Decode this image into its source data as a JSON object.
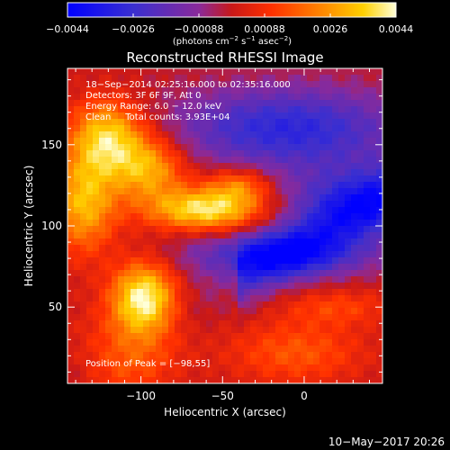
{
  "chart_data": {
    "type": "heatmap",
    "title": "Reconstructed RHESSI Image",
    "xlabel": "Heliocentric X (arcsec)",
    "ylabel": "Heliocentric Y (arcsec)",
    "xlim": [
      -145,
      48
    ],
    "ylim": [
      3,
      197
    ],
    "x_ticks": [
      {
        "value": -100,
        "label": "−100"
      },
      {
        "value": -50,
        "label": "−50"
      },
      {
        "value": 0,
        "label": "0"
      }
    ],
    "y_ticks": [
      {
        "value": 50,
        "label": "50"
      },
      {
        "value": 100,
        "label": "100"
      },
      {
        "value": 150,
        "label": "150"
      }
    ],
    "colorbar": {
      "range": [
        -0.0044,
        0.0044
      ],
      "colormap": "rhessi-blue-purple-red-yellow-white",
      "tick_labels": [
        "−0.0044",
        "−0.0026",
        "−0.00088",
        "0.00088",
        "0.0026",
        "0.0044"
      ],
      "unit_base": "(photons cm",
      "unit_sup1": "−2",
      "unit_mid1": " s",
      "unit_sup2": "−1",
      "unit_mid2": " asec",
      "unit_sup3": "−2",
      "unit_end": ")"
    },
    "annotations": [
      "18−Sep−2014 02:25:16.000 to 02:35:16.000",
      "Detectors: 3F 6F 9F, Att 0",
      "Energy Range: 6.0 − 12.0 keV",
      "Clean     Total counts: 3.93E+04"
    ],
    "peak_label": "Position of Peak = [−98,55]",
    "peak": [
      -98,
      55
    ],
    "sources": [
      {
        "x": -98,
        "y": 55,
        "intensity": 0.0044,
        "sx": 14,
        "sy": 16
      },
      {
        "x": -60,
        "y": 110,
        "intensity": 0.004,
        "sx": 24,
        "sy": 9
      },
      {
        "x": -120,
        "y": 155,
        "intensity": 0.0036,
        "sx": 16,
        "sy": 16
      },
      {
        "x": -135,
        "y": 115,
        "intensity": 0.0032,
        "sx": 14,
        "sy": 22
      },
      {
        "x": -95,
        "y": 135,
        "intensity": 0.003,
        "sx": 16,
        "sy": 14
      },
      {
        "x": -40,
        "y": 125,
        "intensity": 0.0022,
        "sx": 14,
        "sy": 8
      },
      {
        "x": -5,
        "y": 22,
        "intensity": 0.0016,
        "sx": 30,
        "sy": 14
      },
      {
        "x": -110,
        "y": 20,
        "intensity": 0.0018,
        "sx": 22,
        "sy": 18
      },
      {
        "x": 20,
        "y": 50,
        "intensity": 0.0012,
        "sx": 24,
        "sy": 8
      }
    ],
    "negative_bands": [
      {
        "x": -10,
        "y": 160,
        "intensity": -0.003,
        "sx": 50,
        "sy": 18
      },
      {
        "x": -15,
        "y": 82,
        "intensity": -0.0028,
        "sx": 40,
        "sy": 10
      },
      {
        "x": 30,
        "y": 115,
        "intensity": -0.0024,
        "sx": 30,
        "sy": 16
      }
    ],
    "grid": false
  },
  "footer": {
    "date": "10−May−2017 20:26"
  }
}
